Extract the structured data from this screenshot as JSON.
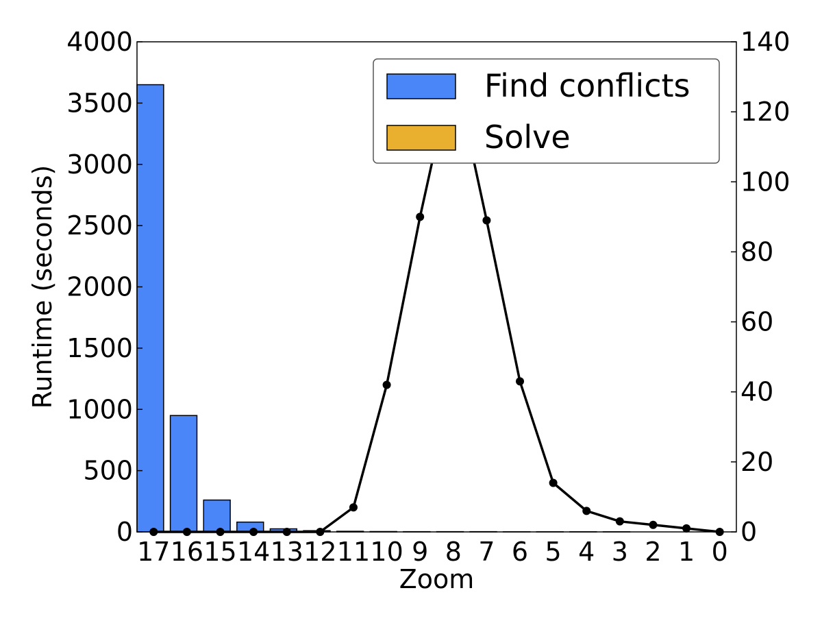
{
  "chart_data": {
    "type": "bar",
    "xlabel": "Zoom",
    "ylabel": "Runtime (seconds)",
    "ylabel_right": "",
    "categories": [
      "17",
      "16",
      "15",
      "14",
      "13",
      "12",
      "11",
      "10",
      "9",
      "8",
      "7",
      "6",
      "5",
      "4",
      "3",
      "2",
      "1",
      "0"
    ],
    "ylim": [
      0,
      4000
    ],
    "yticks": [
      0,
      500,
      1000,
      1500,
      2000,
      2500,
      3000,
      3500,
      4000
    ],
    "y2lim": [
      0,
      140
    ],
    "y2ticks": [
      0,
      20,
      40,
      60,
      80,
      100,
      120,
      140
    ],
    "series": [
      {
        "name": "Find conflicts",
        "kind": "bar",
        "axis": "left",
        "color": "#4a86f7",
        "values": [
          3650,
          950,
          260,
          80,
          25,
          10,
          5,
          3,
          2,
          2,
          2,
          1,
          1,
          1,
          1,
          0,
          0,
          0
        ]
      },
      {
        "name": "Solve",
        "kind": "bar",
        "axis": "left",
        "color": "#e8b02e",
        "values": [
          0,
          0,
          0,
          0,
          0,
          0,
          0,
          0,
          0,
          0,
          0,
          0,
          0,
          0,
          0,
          0,
          0,
          0
        ]
      },
      {
        "name": "",
        "kind": "line",
        "axis": "right",
        "color": "#000000",
        "values": [
          0,
          0,
          0,
          0,
          0,
          0,
          7,
          42,
          90,
          133,
          89,
          43,
          14,
          6,
          3,
          2,
          1,
          0
        ]
      }
    ],
    "legend_position": "top-right",
    "grid": false
  }
}
